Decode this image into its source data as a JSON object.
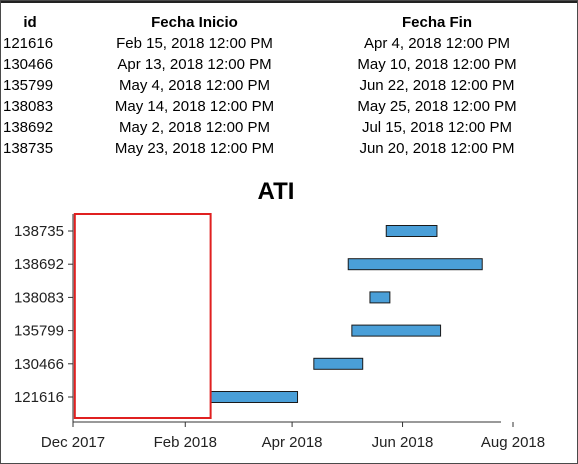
{
  "table": {
    "headers": {
      "id": "id",
      "start": "Fecha Inicio",
      "end": "Fecha Fin"
    },
    "rows": [
      {
        "id": "121616",
        "start": "Feb 15, 2018 12:00 PM",
        "end": "Apr 4, 2018 12:00 PM"
      },
      {
        "id": "130466",
        "start": "Apr 13, 2018 12:00 PM",
        "end": "May 10, 2018 12:00 PM"
      },
      {
        "id": "135799",
        "start": "May 4, 2018 12:00 PM",
        "end": "Jun 22, 2018 12:00 PM"
      },
      {
        "id": "138083",
        "start": "May 14, 2018 12:00 PM",
        "end": "May 25, 2018 12:00 PM"
      },
      {
        "id": "138692",
        "start": "May 2, 2018 12:00 PM",
        "end": "Jul 15, 2018 12:00 PM"
      },
      {
        "id": "138735",
        "start": "May 23, 2018 12:00 PM",
        "end": "Jun 20, 2018 12:00 PM"
      }
    ]
  },
  "chart_data": {
    "type": "bar",
    "orientation": "horizontal-gantt",
    "title": "ATI",
    "categories": [
      "121616",
      "130466",
      "135799",
      "138083",
      "138692",
      "138735"
    ],
    "series": [
      {
        "values": [
          {
            "start": "2018-02-15",
            "end": "2018-04-04"
          },
          {
            "start": "2018-04-13",
            "end": "2018-05-10"
          },
          {
            "start": "2018-05-04",
            "end": "2018-06-22"
          },
          {
            "start": "2018-05-14",
            "end": "2018-05-25"
          },
          {
            "start": "2018-05-02",
            "end": "2018-07-15"
          },
          {
            "start": "2018-05-23",
            "end": "2018-06-20"
          }
        ]
      }
    ],
    "x_ticks": [
      "Dec 2017",
      "Feb 2018",
      "Apr 2018",
      "Jun 2018",
      "Aug 2018"
    ],
    "xlim": [
      "2017-12-01",
      "2018-08-01"
    ],
    "grid": false,
    "bar_color": "#4a9fd8",
    "highlight_box": {
      "start": "2017-12-02",
      "end": "2018-02-15",
      "color": "#e02020"
    }
  }
}
